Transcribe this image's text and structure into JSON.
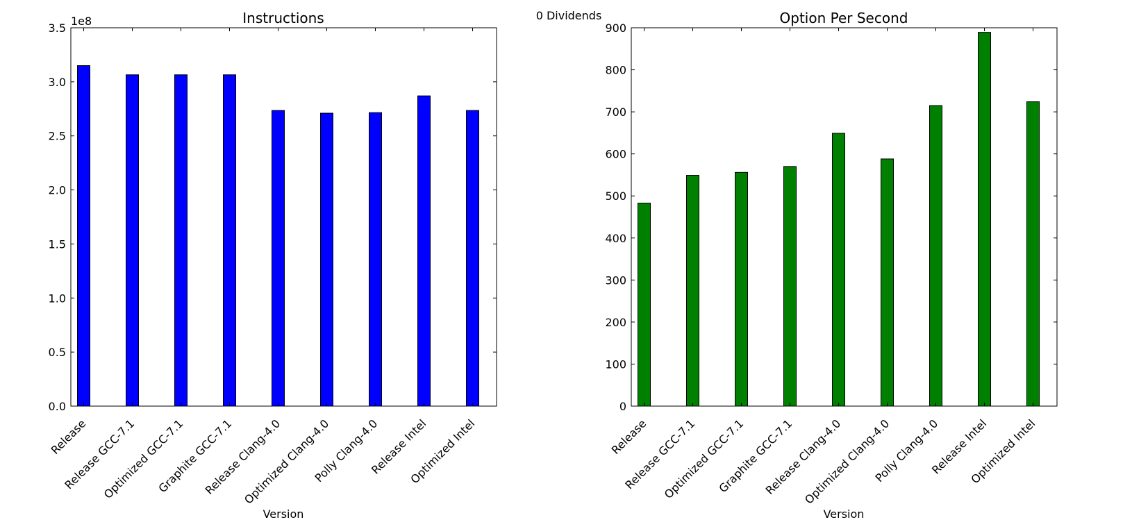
{
  "suptitle": "0 Dividends",
  "chart_data": [
    {
      "type": "bar",
      "title": "Instructions",
      "xlabel": "Version",
      "ylabel": "",
      "offset_label": "1e8",
      "categories": [
        "Release",
        "Release GCC-7.1",
        "Optimized GCC-7.1",
        "Graphite GCC-7.1",
        "Release Clang-4.0",
        "Optimized Clang-4.0",
        "Polly Clang-4.0",
        "Release Intel",
        "Optimized Intel"
      ],
      "values": [
        315000000,
        306500000,
        306500000,
        306500000,
        273500000,
        271000000,
        271500000,
        287000000,
        273500000
      ],
      "ylim": [
        0,
        350000000
      ],
      "yticks": [
        0,
        50000000,
        100000000,
        150000000,
        200000000,
        250000000,
        300000000,
        350000000
      ],
      "ytick_labels": [
        "0.0",
        "0.5",
        "1.0",
        "1.5",
        "2.0",
        "2.5",
        "3.0",
        "3.5"
      ],
      "color": "#0000ff",
      "grid": false
    },
    {
      "type": "bar",
      "title": "Option Per Second",
      "xlabel": "Version",
      "ylabel": "",
      "categories": [
        "Release",
        "Release GCC-7.1",
        "Optimized GCC-7.1",
        "Graphite GCC-7.1",
        "Release Clang-4.0",
        "Optimized Clang-4.0",
        "Polly Clang-4.0",
        "Release Intel",
        "Optimized Intel"
      ],
      "values": [
        483,
        549,
        556,
        570,
        649,
        588,
        715,
        889,
        724
      ],
      "ylim": [
        0,
        900
      ],
      "yticks": [
        0,
        100,
        200,
        300,
        400,
        500,
        600,
        700,
        800,
        900
      ],
      "ytick_labels": [
        "0",
        "100",
        "200",
        "300",
        "400",
        "500",
        "600",
        "700",
        "800",
        "900"
      ],
      "color": "#008000",
      "grid": false
    }
  ]
}
